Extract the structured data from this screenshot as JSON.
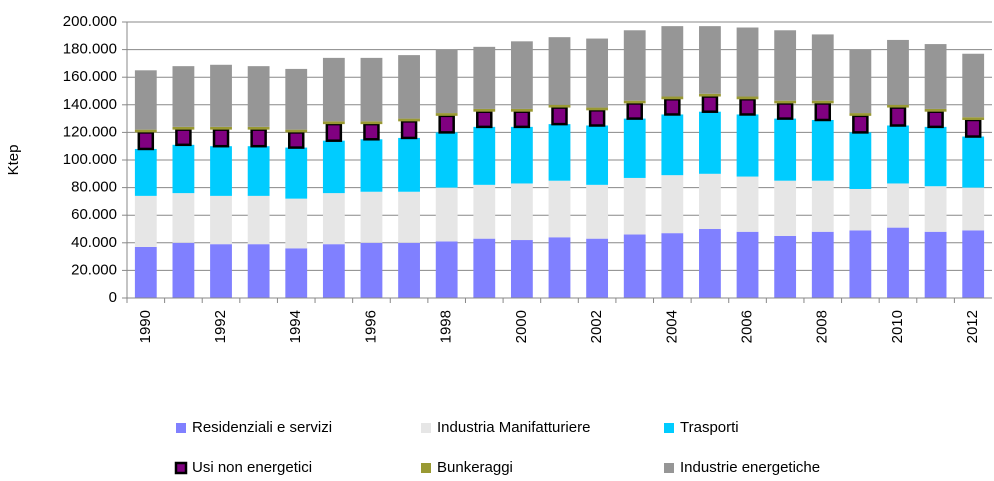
{
  "chart_data": {
    "type": "stacked_bar",
    "y_label": "Ktep",
    "categories": [
      "1990",
      null,
      "1992",
      null,
      "1994",
      null,
      "1996",
      null,
      "1998",
      null,
      "2000",
      null,
      "2002",
      null,
      "2004",
      null,
      "2006",
      null,
      "2008",
      null,
      "2010",
      null,
      "2012"
    ],
    "series": [
      {
        "name": "Residenziali e servizi",
        "color": "#8080ff",
        "values": [
          37000,
          40000,
          39000,
          39000,
          36000,
          39000,
          40000,
          40000,
          41000,
          43000,
          42000,
          44000,
          43000,
          46000,
          47000,
          50000,
          48000,
          45000,
          48000,
          49000,
          51000,
          48000,
          49000
        ]
      },
      {
        "name": "Industria Manifatturiere",
        "color": "#e6e6e6",
        "values": [
          37000,
          36000,
          35000,
          35000,
          36000,
          37000,
          37000,
          37000,
          39000,
          39000,
          41000,
          41000,
          39000,
          41000,
          42000,
          40000,
          40000,
          40000,
          37000,
          30000,
          32000,
          33000,
          31000
        ]
      },
      {
        "name": "Trasporti",
        "color": "#00ccff",
        "values": [
          34000,
          35000,
          36000,
          36000,
          37000,
          38000,
          38000,
          39000,
          40000,
          42000,
          41000,
          41000,
          43000,
          43000,
          44000,
          45000,
          45000,
          45000,
          44000,
          41000,
          42000,
          43000,
          37000
        ]
      },
      {
        "name": "Usi non energetici",
        "color": "#800080",
        "marker": true,
        "values": [
          12000,
          11000,
          12000,
          12000,
          11000,
          12000,
          11000,
          12000,
          12000,
          11000,
          11000,
          12000,
          11000,
          11000,
          11000,
          11000,
          11000,
          11000,
          12000,
          12000,
          13000,
          11000,
          12000
        ]
      },
      {
        "name": "Bunkeraggi",
        "color": "#999933",
        "values": [
          2000,
          2000,
          2000,
          2000,
          2000,
          2000,
          2000,
          2000,
          2000,
          2000,
          2000,
          2000,
          2000,
          2000,
          2000,
          2000,
          2000,
          2000,
          2000,
          2000,
          2000,
          2000,
          2000
        ]
      },
      {
        "name": "Industrie energetiche",
        "color": "#969696",
        "values": [
          43000,
          44000,
          45000,
          44000,
          44000,
          46000,
          46000,
          46000,
          46000,
          45000,
          49000,
          49000,
          50000,
          51000,
          51000,
          49000,
          50000,
          51000,
          48000,
          46000,
          47000,
          47000,
          46000
        ]
      }
    ],
    "ylim": [
      0,
      200000
    ],
    "yticks": [
      0,
      {
        "value": 20000,
        "label": "20.000"
      },
      {
        "value": 40000,
        "label": "40.000"
      },
      {
        "value": 60000,
        "label": "60.000"
      },
      {
        "value": 80000,
        "label": "80.000"
      },
      {
        "value": 100000,
        "label": "100.000"
      },
      {
        "value": 120000,
        "label": "120.000"
      },
      {
        "value": 140000,
        "label": "140.000"
      },
      {
        "value": 160000,
        "label": "160.000"
      },
      {
        "value": 180000,
        "label": "180.000"
      },
      {
        "value": 200000,
        "label": "200.000"
      }
    ],
    "grid": true
  }
}
